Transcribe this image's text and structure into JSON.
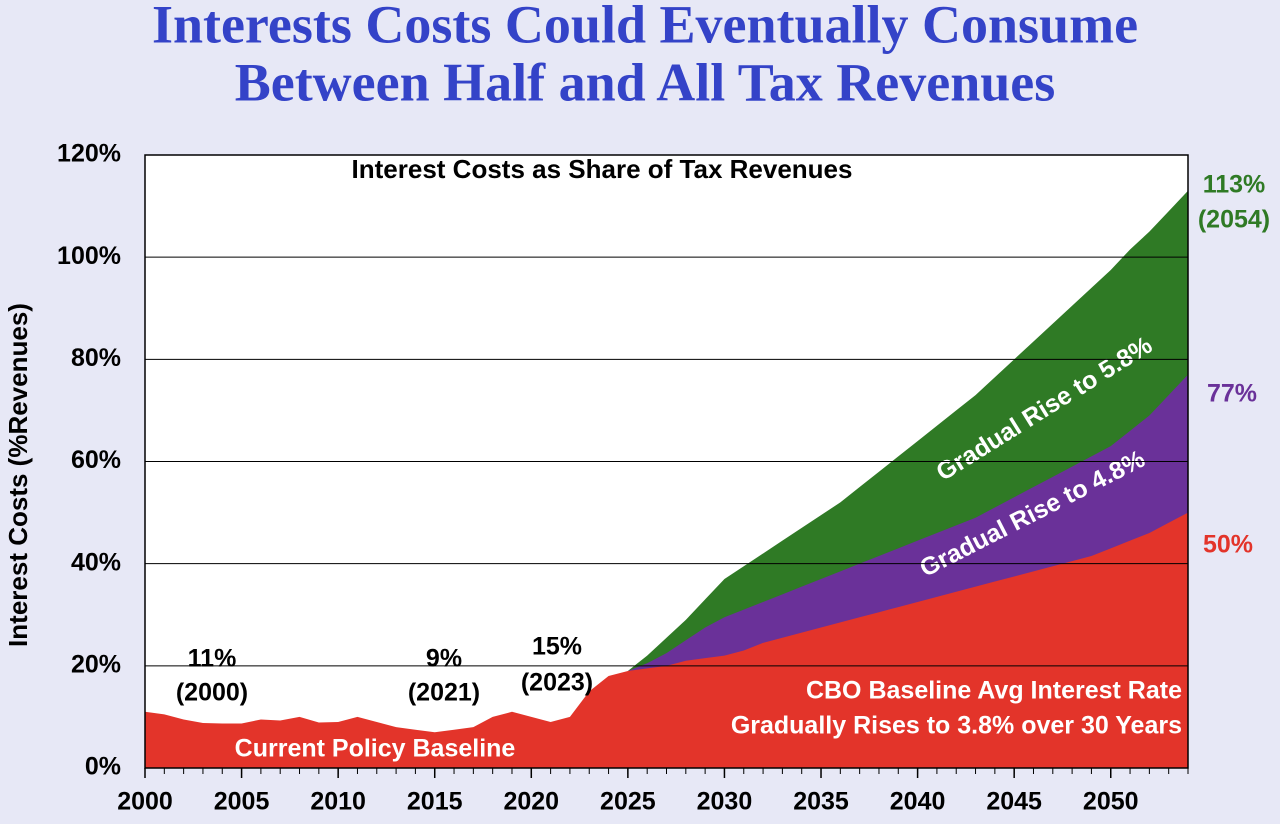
{
  "chart_data": {
    "type": "area",
    "title": [
      "Interests Costs Could Eventually Consume",
      "Between Half and All Tax Revenues"
    ],
    "subtitle": "Interest Costs as Share of Tax Revenues",
    "ylabel": "Interest Costs (%Revenues)",
    "x": [
      2000,
      2001,
      2002,
      2003,
      2004,
      2005,
      2006,
      2007,
      2008,
      2009,
      2010,
      2011,
      2012,
      2013,
      2014,
      2015,
      2016,
      2017,
      2018,
      2019,
      2020,
      2021,
      2022,
      2023,
      2024,
      2025,
      2026,
      2027,
      2028,
      2029,
      2030,
      2031,
      2032,
      2033,
      2034,
      2035,
      2036,
      2037,
      2038,
      2039,
      2040,
      2041,
      2042,
      2043,
      2044,
      2045,
      2046,
      2047,
      2048,
      2049,
      2050,
      2051,
      2052,
      2053,
      2054
    ],
    "series": [
      {
        "name": "Gradual Rise to 5.8%",
        "color": "#2f7a25",
        "values": [
          null,
          null,
          null,
          null,
          null,
          null,
          null,
          null,
          null,
          null,
          null,
          null,
          null,
          null,
          null,
          null,
          null,
          null,
          null,
          null,
          null,
          null,
          null,
          null,
          null,
          19,
          22,
          25.5,
          29,
          33,
          37,
          39.5,
          42,
          44.5,
          47,
          49.5,
          52,
          55,
          58,
          61,
          64,
          67,
          70,
          73,
          76.5,
          80,
          83.5,
          87,
          90.5,
          94,
          97.5,
          101.5,
          105,
          109,
          113
        ]
      },
      {
        "name": "Gradual Rise to 4.8%",
        "color": "#6a3199",
        "values": [
          null,
          null,
          null,
          null,
          null,
          null,
          null,
          null,
          null,
          null,
          null,
          null,
          null,
          null,
          null,
          null,
          null,
          null,
          null,
          null,
          null,
          null,
          null,
          null,
          null,
          19,
          20.5,
          22.5,
          25,
          27.5,
          29.5,
          31,
          32.5,
          34,
          35.5,
          37,
          38.5,
          40,
          41.5,
          43,
          44.5,
          46,
          47.5,
          49,
          51,
          53,
          55,
          57,
          59,
          61,
          63,
          66,
          69,
          73,
          77
        ]
      },
      {
        "name": "Current Policy Baseline",
        "color": "#e3342a",
        "values": [
          11,
          10.5,
          9.5,
          8.8,
          8.7,
          8.7,
          9.5,
          9.3,
          10,
          8.9,
          9,
          10,
          9,
          8,
          7.5,
          7,
          7.5,
          8,
          10,
          11,
          10,
          9,
          10,
          15,
          18,
          19,
          19.5,
          20,
          21,
          21.5,
          22,
          23,
          24.5,
          25.5,
          26.5,
          27.5,
          28.5,
          29.5,
          30.5,
          31.5,
          32.5,
          33.5,
          34.5,
          35.5,
          36.5,
          37.5,
          38.5,
          39.5,
          40.5,
          41.5,
          43,
          44.5,
          46,
          48,
          50
        ]
      }
    ],
    "annotations": [
      {
        "text": "11%",
        "year": "(2000)"
      },
      {
        "text": "9%",
        "year": "(2021)"
      },
      {
        "text": "15%",
        "year": "(2023)"
      },
      {
        "text": "113%",
        "year": "(2054)"
      },
      {
        "text": "77%"
      },
      {
        "text": "50%"
      },
      {
        "text": "CBO Baseline Avg Interest Rate"
      },
      {
        "text": "Gradually Rises to 3.8% over 30 Years"
      }
    ],
    "xlim": [
      2000,
      2054
    ],
    "xticks": [
      2000,
      2005,
      2010,
      2015,
      2020,
      2025,
      2030,
      2035,
      2040,
      2045,
      2050
    ],
    "ylim": [
      0,
      120
    ],
    "yticks": [
      {
        "value": 0,
        "label": "0%"
      },
      {
        "value": 20,
        "label": "20%"
      },
      {
        "value": 40,
        "label": "40%"
      },
      {
        "value": 60,
        "label": "60%"
      },
      {
        "value": 80,
        "label": "80%"
      },
      {
        "value": 100,
        "label": "100%"
      },
      {
        "value": 120,
        "label": "120%"
      }
    ],
    "grid": true
  }
}
